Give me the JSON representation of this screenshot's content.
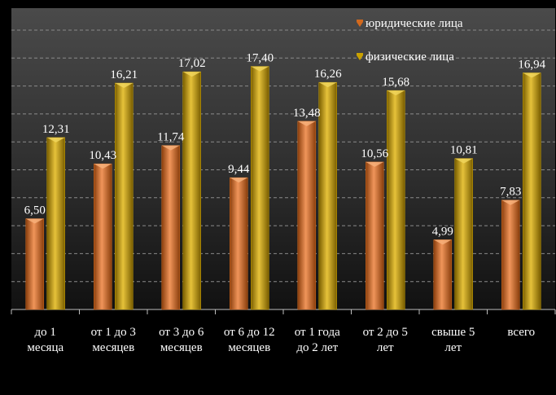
{
  "chart_data": {
    "type": "bar",
    "title": "",
    "xlabel": "",
    "ylabel": "",
    "ylim": [
      0,
      20
    ],
    "grid": true,
    "legend_position": "top-right",
    "categories": [
      [
        "до 1",
        "месяца"
      ],
      [
        "от 1 до 3",
        "месяцев"
      ],
      [
        "от 3 до 6",
        "месяцев"
      ],
      [
        "от 6 до 12",
        "месяцев"
      ],
      [
        "от 1 года",
        "до 2 лет"
      ],
      [
        "от 2 до 5",
        "лет"
      ],
      [
        "свыше 5",
        "лет"
      ],
      [
        "всего"
      ]
    ],
    "series": [
      {
        "name": "юридические лица",
        "color": "#d2691e",
        "values": [
          6.5,
          10.43,
          11.74,
          9.44,
          13.48,
          10.56,
          4.99,
          7.83
        ],
        "labels": [
          "6,50",
          "10,43",
          "11,74",
          "9,44",
          "13,48",
          "10,56",
          "4,99",
          "7,83"
        ]
      },
      {
        "name": "физические лица",
        "color": "#c9a100",
        "values": [
          12.31,
          16.21,
          17.02,
          17.4,
          16.26,
          15.68,
          10.81,
          16.94
        ],
        "labels": [
          "12,31",
          "16,21",
          "17,02",
          "17,40",
          "16,26",
          "15,68",
          "10,81",
          "16,94"
        ]
      }
    ]
  }
}
